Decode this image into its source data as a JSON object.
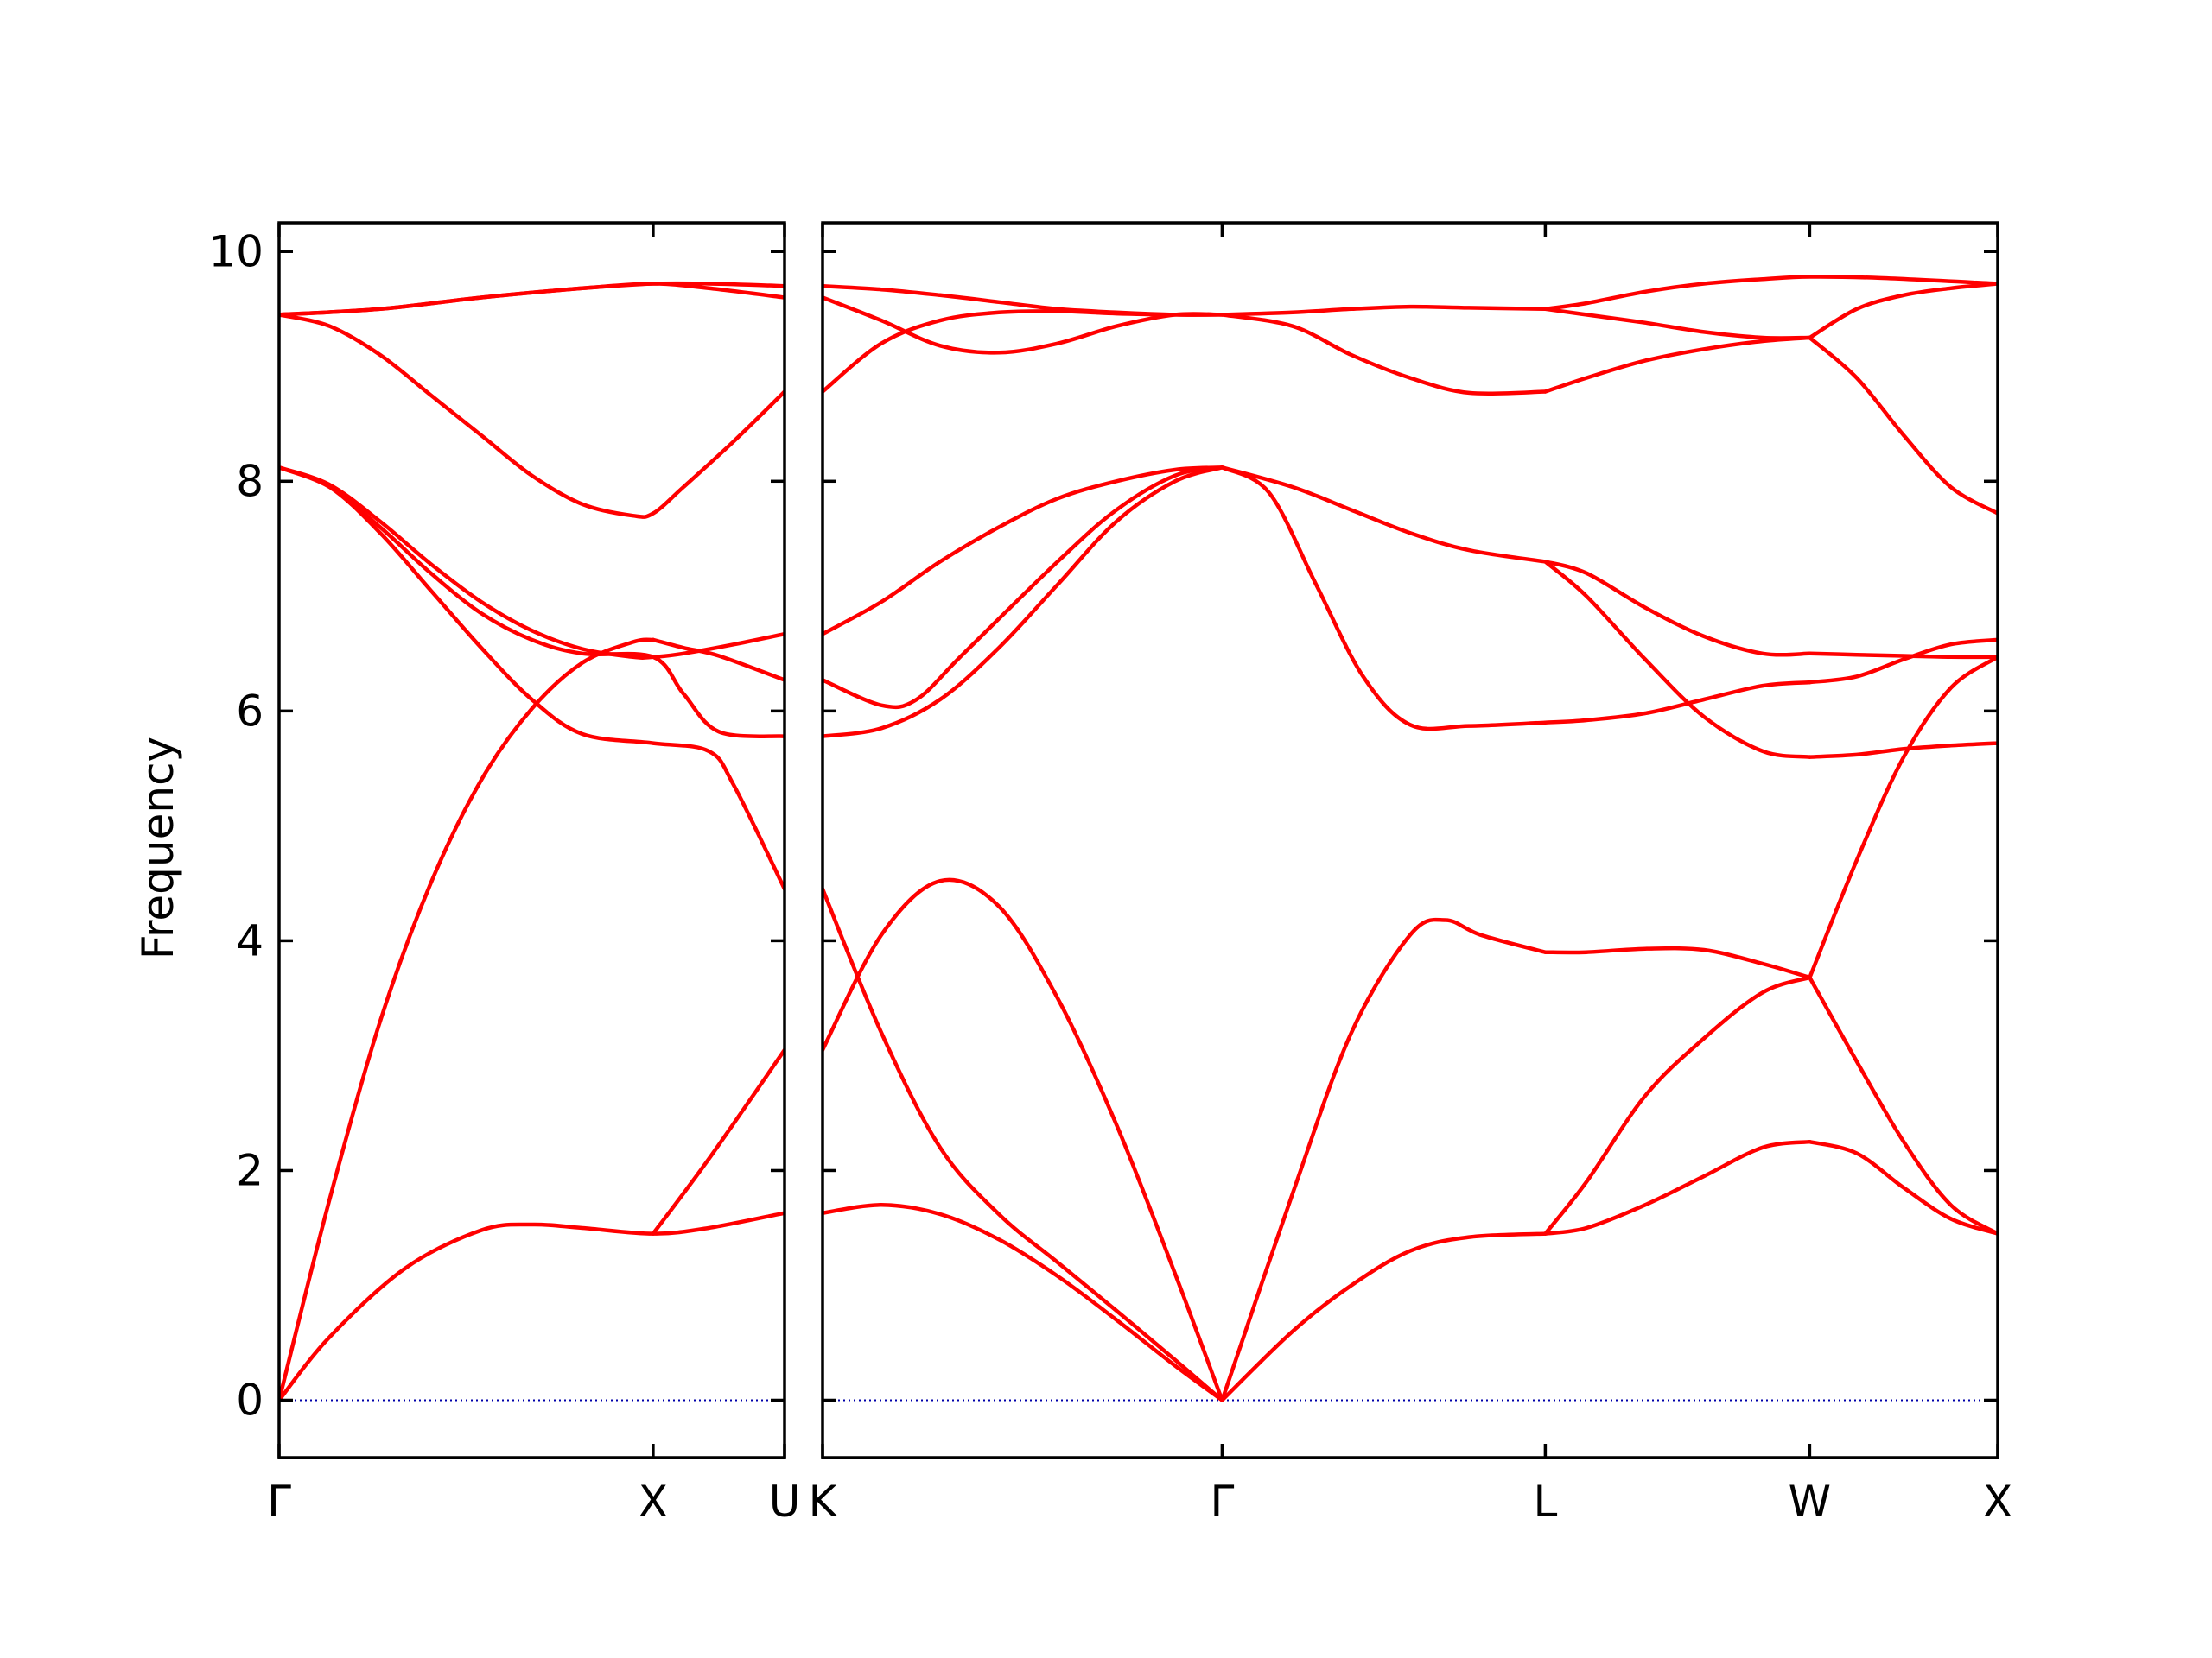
{
  "chart_data": {
    "type": "line",
    "ylabel": "Frequency",
    "ylim": [
      -0.5,
      10.25
    ],
    "y_ticks": [
      "0",
      "2",
      "4",
      "6",
      "8",
      "10"
    ],
    "grid": false,
    "legend": "none",
    "line_color": "#ff0000",
    "zero_line_color": "#0000aa",
    "panels": [
      {
        "name": "Γ-X-U",
        "x_range": [
          0,
          1
        ],
        "tick_positions": [
          0,
          0.74,
          1
        ],
        "tick_labels": [
          "Γ",
          "X",
          "U"
        ],
        "series": [
          {
            "x": [
              0,
              0.1,
              0.25,
              0.4,
              0.5,
              0.6,
              0.74,
              0.85,
              1
            ],
            "y": [
              0,
              0.55,
              1.15,
              1.48,
              1.53,
              1.5,
              1.45,
              1.5,
              1.63
            ]
          },
          {
            "x": [
              0,
              0.1,
              0.2,
              0.3,
              0.4,
              0.5,
              0.6,
              0.7,
              0.74
            ],
            "y": [
              0,
              1.75,
              3.3,
              4.5,
              5.4,
              6.02,
              6.42,
              6.6,
              6.62
            ]
          },
          {
            "x": [
              0.74,
              0.85,
              1
            ],
            "y": [
              1.45,
              2.1,
              3.05
            ]
          },
          {
            "x": [
              0,
              0.1,
              0.2,
              0.3,
              0.4,
              0.5,
              0.6,
              0.74,
              0.85,
              0.9,
              1
            ],
            "y": [
              8.12,
              7.95,
              7.55,
              7.05,
              6.55,
              6.1,
              5.8,
              5.72,
              5.65,
              5.35,
              4.45
            ]
          },
          {
            "x": [
              0,
              0.1,
              0.2,
              0.3,
              0.4,
              0.5,
              0.6,
              0.74,
              0.8,
              0.87,
              1
            ],
            "y": [
              8.12,
              7.95,
              7.6,
              7.2,
              6.85,
              6.62,
              6.5,
              6.47,
              6.15,
              5.82,
              5.78
            ]
          },
          {
            "x": [
              0.74,
              0.8,
              0.87,
              1
            ],
            "y": [
              6.62,
              6.55,
              6.48,
              6.27
            ]
          },
          {
            "x": [
              0,
              0.1,
              0.2,
              0.3,
              0.4,
              0.5,
              0.6,
              0.7,
              0.74,
              0.8,
              0.9,
              1
            ],
            "y": [
              8.12,
              7.97,
              7.65,
              7.28,
              6.95,
              6.7,
              6.54,
              6.47,
              6.47,
              6.5,
              6.58,
              6.67
            ]
          },
          {
            "x": [
              0,
              0.1,
              0.2,
              0.3,
              0.4,
              0.5,
              0.6,
              0.7,
              0.74,
              0.8,
              0.9,
              1
            ],
            "y": [
              9.45,
              9.35,
              9.1,
              8.75,
              8.4,
              8.05,
              7.8,
              7.7,
              7.72,
              7.95,
              8.35,
              8.78
            ]
          },
          {
            "x": [
              0,
              0.2,
              0.4,
              0.6,
              0.74,
              0.85,
              1
            ],
            "y": [
              9.45,
              9.5,
              9.6,
              9.68,
              9.72,
              9.72,
              9.7
            ]
          },
          {
            "x": [
              0,
              0.2,
              0.4,
              0.6,
              0.74,
              0.85,
              1
            ],
            "y": [
              9.45,
              9.5,
              9.6,
              9.68,
              9.72,
              9.68,
              9.6
            ]
          }
        ]
      },
      {
        "name": "K-Γ-L-W-X",
        "x_range": [
          0,
          1
        ],
        "tick_positions": [
          0,
          0.34,
          0.615,
          0.84,
          1
        ],
        "tick_labels": [
          "K",
          "Γ",
          "L",
          "W",
          "X"
        ],
        "series": [
          {
            "x": [
              0,
              0.05,
              0.1,
              0.15,
              0.2,
              0.25,
              0.3,
              0.34
            ],
            "y": [
              1.63,
              1.7,
              1.62,
              1.4,
              1.08,
              0.7,
              0.3,
              0
            ]
          },
          {
            "x": [
              0,
              0.05,
              0.1,
              0.15,
              0.2,
              0.25,
              0.3,
              0.34
            ],
            "y": [
              4.45,
              3.2,
              2.2,
              1.62,
              1.2,
              0.78,
              0.35,
              0
            ]
          },
          {
            "x": [
              0,
              0.05,
              0.1,
              0.15,
              0.2,
              0.25,
              0.3,
              0.34
            ],
            "y": [
              3.05,
              4.05,
              4.52,
              4.3,
              3.5,
              2.4,
              1.1,
              0
            ]
          },
          {
            "x": [
              0.34,
              0.4,
              0.45,
              0.5,
              0.55,
              0.615
            ],
            "y": [
              0,
              0.6,
              1.0,
              1.3,
              1.42,
              1.45
            ]
          },
          {
            "x": [
              0.34,
              0.4,
              0.45,
              0.5,
              0.53,
              0.56,
              0.615
            ],
            "y": [
              0,
              1.8,
              3.2,
              4.05,
              4.18,
              4.05,
              3.9
            ]
          },
          {
            "x": [
              0.615,
              0.65,
              0.7,
              0.75,
              0.8,
              0.84
            ],
            "y": [
              1.45,
              1.5,
              1.7,
              1.95,
              2.2,
              2.25
            ]
          },
          {
            "x": [
              0.615,
              0.65,
              0.7,
              0.75,
              0.8,
              0.84
            ],
            "y": [
              1.45,
              1.9,
              2.65,
              3.15,
              3.55,
              3.68
            ]
          },
          {
            "x": [
              0.615,
              0.65,
              0.7,
              0.75,
              0.8,
              0.84
            ],
            "y": [
              3.9,
              3.9,
              3.93,
              3.92,
              3.8,
              3.68
            ]
          },
          {
            "x": [
              0.84,
              0.88,
              0.92,
              0.96,
              1
            ],
            "y": [
              2.25,
              2.15,
              1.85,
              1.58,
              1.45
            ]
          },
          {
            "x": [
              0.84,
              0.88,
              0.92,
              0.96,
              1
            ],
            "y": [
              3.68,
              2.95,
              2.25,
              1.7,
              1.45
            ]
          },
          {
            "x": [
              0.84,
              0.88,
              0.92,
              0.96,
              1
            ],
            "y": [
              3.68,
              4.7,
              5.6,
              6.2,
              6.47
            ]
          },
          {
            "x": [
              0,
              0.05,
              0.1,
              0.15,
              0.2,
              0.25,
              0.3,
              0.34
            ],
            "y": [
              5.78,
              5.85,
              6.1,
              6.55,
              7.1,
              7.65,
              8.0,
              8.12
            ]
          },
          {
            "x": [
              0,
              0.05,
              0.08,
              0.12,
              0.2,
              0.25,
              0.3,
              0.34
            ],
            "y": [
              6.27,
              6.05,
              6.1,
              6.5,
              7.3,
              7.75,
              8.05,
              8.12
            ]
          },
          {
            "x": [
              0,
              0.05,
              0.1,
              0.15,
              0.2,
              0.25,
              0.3,
              0.34
            ],
            "y": [
              6.67,
              6.95,
              7.3,
              7.6,
              7.85,
              8.0,
              8.1,
              8.12
            ]
          },
          {
            "x": [
              0.34,
              0.38,
              0.42,
              0.46,
              0.5,
              0.55,
              0.615
            ],
            "y": [
              8.12,
              7.9,
              7.1,
              6.3,
              5.88,
              5.87,
              5.9
            ]
          },
          {
            "x": [
              0.34,
              0.4,
              0.45,
              0.5,
              0.55,
              0.615
            ],
            "y": [
              8.12,
              7.95,
              7.75,
              7.55,
              7.4,
              7.3
            ]
          },
          {
            "x": [
              0.615,
              0.65,
              0.7,
              0.75,
              0.8,
              0.84
            ],
            "y": [
              5.9,
              5.92,
              5.98,
              6.1,
              6.22,
              6.25
            ]
          },
          {
            "x": [
              0.615,
              0.65,
              0.7,
              0.75,
              0.8,
              0.84
            ],
            "y": [
              7.3,
              7.0,
              6.45,
              5.95,
              5.65,
              5.6
            ]
          },
          {
            "x": [
              0.615,
              0.65,
              0.7,
              0.75,
              0.8,
              0.84
            ],
            "y": [
              7.3,
              7.2,
              6.9,
              6.65,
              6.5,
              6.5
            ]
          },
          {
            "x": [
              0.84,
              0.88,
              0.92,
              0.96,
              1
            ],
            "y": [
              5.6,
              5.62,
              5.67,
              5.7,
              5.72
            ]
          },
          {
            "x": [
              0.84,
              0.88,
              0.92,
              0.96,
              1
            ],
            "y": [
              6.25,
              6.3,
              6.45,
              6.58,
              6.62
            ]
          },
          {
            "x": [
              0.84,
              0.88,
              0.92,
              0.96,
              1
            ],
            "y": [
              6.5,
              6.49,
              6.48,
              6.47,
              6.47
            ]
          },
          {
            "x": [
              0,
              0.05,
              0.1,
              0.15,
              0.2,
              0.25,
              0.3,
              0.34
            ],
            "y": [
              8.78,
              9.2,
              9.4,
              9.47,
              9.48,
              9.46,
              9.45,
              9.45
            ]
          },
          {
            "x": [
              0,
              0.05,
              0.1,
              0.15,
              0.2,
              0.25,
              0.3,
              0.34
            ],
            "y": [
              9.6,
              9.4,
              9.18,
              9.12,
              9.2,
              9.35,
              9.45,
              9.45
            ]
          },
          {
            "x": [
              0,
              0.05,
              0.1,
              0.15,
              0.2,
              0.25,
              0.3,
              0.34
            ],
            "y": [
              9.7,
              9.67,
              9.62,
              9.56,
              9.5,
              9.47,
              9.45,
              9.45
            ]
          },
          {
            "x": [
              0.34,
              0.4,
              0.45,
              0.5,
              0.55,
              0.615
            ],
            "y": [
              9.45,
              9.47,
              9.5,
              9.52,
              9.51,
              9.5
            ]
          },
          {
            "x": [
              0.34,
              0.4,
              0.45,
              0.5,
              0.55,
              0.615
            ],
            "y": [
              9.45,
              9.35,
              9.1,
              8.9,
              8.77,
              8.78
            ]
          },
          {
            "x": [
              0.615,
              0.65,
              0.7,
              0.75,
              0.8,
              0.84
            ],
            "y": [
              8.78,
              8.9,
              9.05,
              9.15,
              9.22,
              9.25
            ]
          },
          {
            "x": [
              0.615,
              0.65,
              0.7,
              0.75,
              0.8,
              0.84
            ],
            "y": [
              9.5,
              9.45,
              9.38,
              9.3,
              9.25,
              9.25
            ]
          },
          {
            "x": [
              0.615,
              0.65,
              0.7,
              0.75,
              0.8,
              0.84,
              0.9,
              1
            ],
            "y": [
              9.5,
              9.55,
              9.65,
              9.72,
              9.76,
              9.78,
              9.77,
              9.72
            ]
          },
          {
            "x": [
              0.84,
              0.88,
              0.92,
              0.96,
              1
            ],
            "y": [
              9.25,
              8.9,
              8.4,
              7.95,
              7.72
            ]
          },
          {
            "x": [
              0.84,
              0.88,
              0.92,
              0.96,
              1
            ],
            "y": [
              9.25,
              9.5,
              9.62,
              9.68,
              9.72
            ]
          }
        ]
      }
    ]
  }
}
